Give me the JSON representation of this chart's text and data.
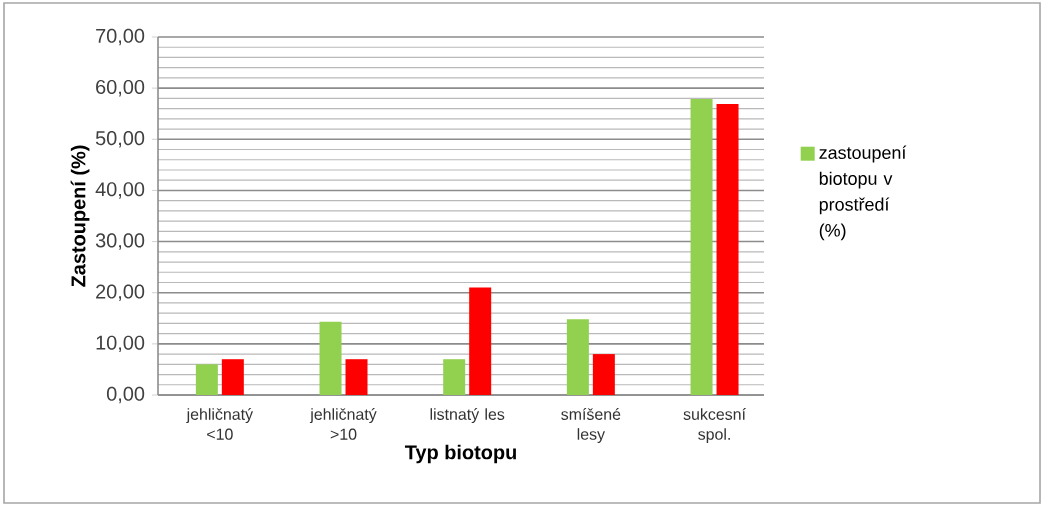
{
  "chart_data": {
    "type": "bar",
    "xlabel": "Typ biotopu",
    "ylabel": "Zastoupení (%)",
    "categories": [
      "jehličnatý <10",
      "jehličnatý >10",
      "listnatý les",
      "smíšené lesy",
      "sukcesní spol."
    ],
    "series": [
      {
        "name": "zastoupení biotopu v prostředí (%)",
        "color": "#92d050",
        "values": [
          6,
          14.3,
          7,
          14.8,
          57.9
        ]
      },
      {
        "color": "#ff0000",
        "values": [
          7,
          7,
          21,
          8,
          56.9
        ]
      }
    ],
    "ylim": [
      0,
      70
    ],
    "yticks": [
      {
        "value": 0,
        "label": "0,00"
      },
      {
        "value": 10,
        "label": "10,00"
      },
      {
        "value": 20,
        "label": "20,00"
      },
      {
        "value": 30,
        "label": "30,00"
      },
      {
        "value": 40,
        "label": "40,00"
      },
      {
        "value": 50,
        "label": "50,00"
      },
      {
        "value": 60,
        "label": "60,00"
      },
      {
        "value": 70,
        "label": "70,00"
      }
    ],
    "grid": "y",
    "legend": "right"
  }
}
